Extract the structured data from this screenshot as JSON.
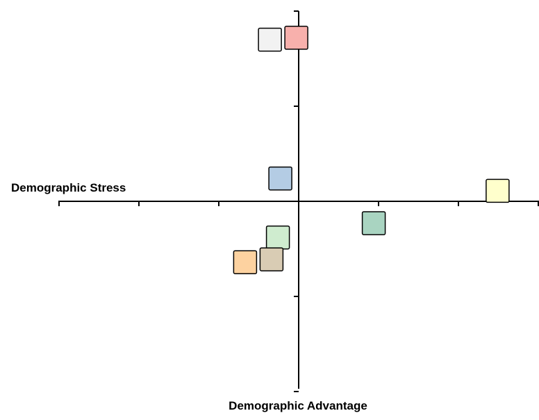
{
  "chart_data": {
    "type": "scatter",
    "marker": "square",
    "title": "",
    "xlabel": "Demographic Stress",
    "ylabel": "Demographic Advantage",
    "xlim": [
      -3,
      3
    ],
    "ylim": [
      -2,
      2
    ],
    "xticks": [
      -3,
      -2,
      -1,
      0,
      1,
      2,
      3
    ],
    "yticks": [
      -2,
      -1,
      0,
      1,
      2
    ],
    "grid": false,
    "legend": "none",
    "series": [
      {
        "x": -0.36,
        "y": 1.7,
        "color": "#f2f2f2"
      },
      {
        "x": -0.03,
        "y": 1.72,
        "color": "#f8b0ac"
      },
      {
        "x": -0.23,
        "y": 0.24,
        "color": "#b4cce4"
      },
      {
        "x": 2.49,
        "y": 0.11,
        "color": "#ffffcc"
      },
      {
        "x": 0.94,
        "y": -0.23,
        "color": "#a9d4c1"
      },
      {
        "x": -0.26,
        "y": -0.38,
        "color": "#cfeccf"
      },
      {
        "x": -0.34,
        "y": -0.61,
        "color": "#d9ccb4"
      },
      {
        "x": -0.67,
        "y": -0.64,
        "color": "#fdd2a0"
      }
    ]
  }
}
